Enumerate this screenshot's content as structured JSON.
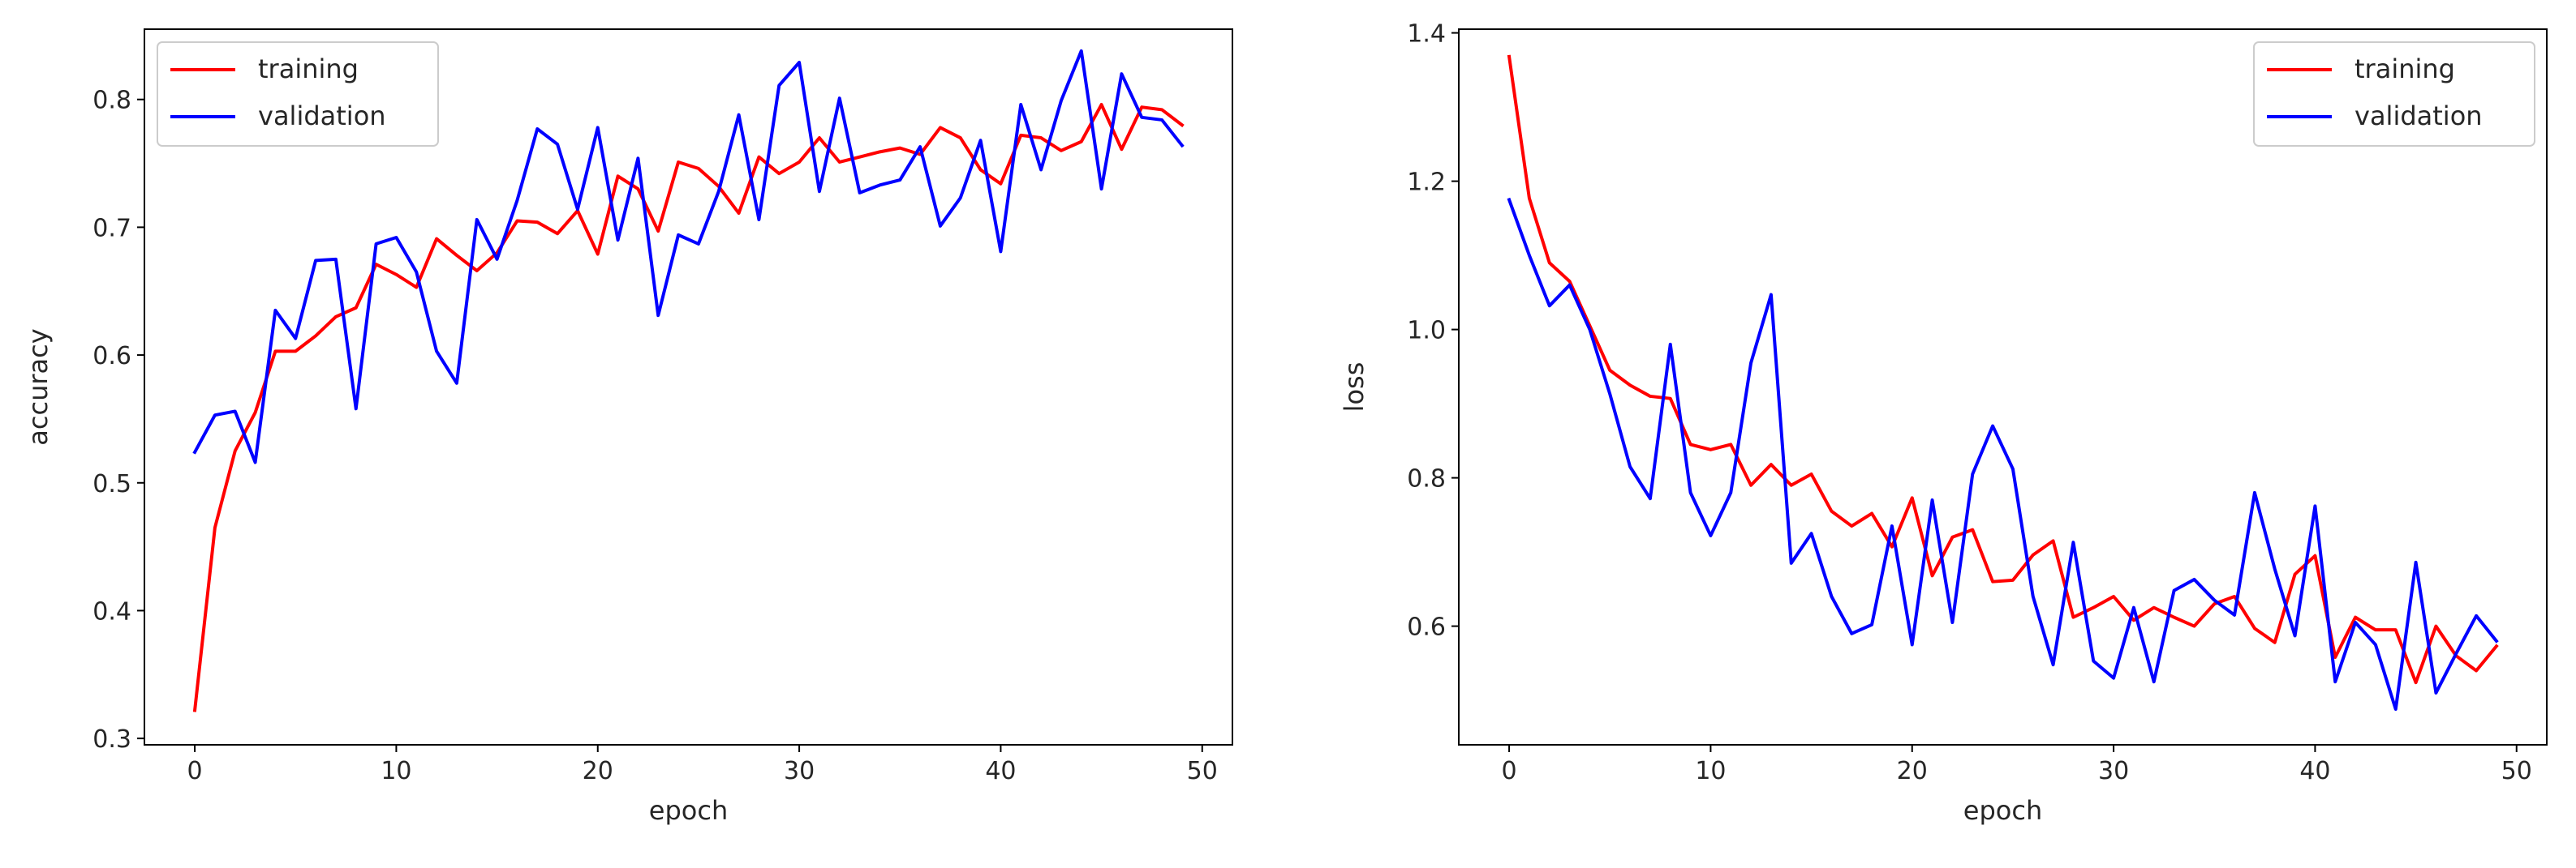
{
  "chart_data": [
    {
      "type": "line",
      "title": "",
      "xlabel": "epoch",
      "ylabel": "accuracy",
      "xlim": [
        -2.5,
        51.5
      ],
      "ylim": [
        0.295,
        0.855
      ],
      "xticks": [
        0,
        10,
        20,
        30,
        40,
        50
      ],
      "xtick_labels": [
        "0",
        "10",
        "20",
        "30",
        "40",
        "50"
      ],
      "yticks": [
        0.3,
        0.4,
        0.5,
        0.6,
        0.7,
        0.8
      ],
      "ytick_labels": [
        "0.3",
        "0.4",
        "0.5",
        "0.6",
        "0.7",
        "0.8"
      ],
      "legend_position": "top-left",
      "grid": false,
      "x": [
        0,
        1,
        2,
        3,
        4,
        5,
        6,
        7,
        8,
        9,
        10,
        11,
        12,
        13,
        14,
        15,
        16,
        17,
        18,
        19,
        20,
        21,
        22,
        23,
        24,
        25,
        26,
        27,
        28,
        29,
        30,
        31,
        32,
        33,
        34,
        35,
        36,
        37,
        38,
        39,
        40,
        41,
        42,
        43,
        44,
        45,
        46,
        47,
        48,
        49
      ],
      "series": [
        {
          "name": "training",
          "color": "#ff0000",
          "values": [
            0.322,
            0.465,
            0.525,
            0.555,
            0.603,
            0.603,
            0.615,
            0.63,
            0.637,
            0.671,
            0.663,
            0.653,
            0.691,
            0.678,
            0.666,
            0.68,
            0.705,
            0.704,
            0.695,
            0.713,
            0.679,
            0.74,
            0.73,
            0.697,
            0.751,
            0.746,
            0.732,
            0.711,
            0.755,
            0.742,
            0.751,
            0.77,
            0.751,
            0.755,
            0.759,
            0.762,
            0.757,
            0.778,
            0.77,
            0.745,
            0.734,
            0.772,
            0.77,
            0.76,
            0.767,
            0.796,
            0.761,
            0.794,
            0.792,
            0.78
          ]
        },
        {
          "name": "validation",
          "color": "#0000ff",
          "values": [
            0.524,
            0.553,
            0.556,
            0.516,
            0.635,
            0.613,
            0.674,
            0.675,
            0.558,
            0.687,
            0.692,
            0.665,
            0.603,
            0.578,
            0.706,
            0.675,
            0.721,
            0.777,
            0.765,
            0.714,
            0.778,
            0.69,
            0.754,
            0.631,
            0.694,
            0.687,
            0.728,
            0.788,
            0.706,
            0.811,
            0.829,
            0.728,
            0.801,
            0.727,
            0.733,
            0.737,
            0.763,
            0.701,
            0.723,
            0.768,
            0.681,
            0.796,
            0.745,
            0.799,
            0.838,
            0.73,
            0.82,
            0.786,
            0.784,
            0.764
          ]
        }
      ]
    },
    {
      "type": "line",
      "title": "",
      "xlabel": "epoch",
      "ylabel": "loss",
      "xlim": [
        -2.5,
        51.5
      ],
      "ylim": [
        0.44,
        1.405
      ],
      "xticks": [
        0,
        10,
        20,
        30,
        40,
        50
      ],
      "xtick_labels": [
        "0",
        "10",
        "20",
        "30",
        "40",
        "50"
      ],
      "yticks": [
        0.6,
        0.8,
        1.0,
        1.2,
        1.4
      ],
      "ytick_labels": [
        "0.6",
        "0.8",
        "1.0",
        "1.2",
        "1.4"
      ],
      "legend_position": "top-right",
      "grid": false,
      "x": [
        0,
        1,
        2,
        3,
        4,
        5,
        6,
        7,
        8,
        9,
        10,
        11,
        12,
        13,
        14,
        15,
        16,
        17,
        18,
        19,
        20,
        21,
        22,
        23,
        24,
        25,
        26,
        27,
        28,
        29,
        30,
        31,
        32,
        33,
        34,
        35,
        36,
        37,
        38,
        39,
        40,
        41,
        42,
        43,
        44,
        45,
        46,
        47,
        48,
        49
      ],
      "series": [
        {
          "name": "training",
          "color": "#ff0000",
          "values": [
            1.368,
            1.177,
            1.09,
            1.065,
            1.005,
            0.945,
            0.925,
            0.91,
            0.907,
            0.845,
            0.838,
            0.845,
            0.79,
            0.818,
            0.79,
            0.805,
            0.755,
            0.735,
            0.752,
            0.707,
            0.773,
            0.668,
            0.72,
            0.73,
            0.66,
            0.662,
            0.696,
            0.715,
            0.612,
            0.625,
            0.64,
            0.608,
            0.625,
            0.612,
            0.6,
            0.63,
            0.64,
            0.597,
            0.578,
            0.67,
            0.695,
            0.558,
            0.612,
            0.595,
            0.595,
            0.524,
            0.6,
            0.56,
            0.54,
            0.573
          ]
        },
        {
          "name": "validation",
          "color": "#0000ff",
          "values": [
            1.175,
            1.1,
            1.032,
            1.06,
            1.0,
            0.913,
            0.815,
            0.772,
            0.98,
            0.78,
            0.722,
            0.78,
            0.955,
            1.047,
            0.685,
            0.725,
            0.64,
            0.59,
            0.602,
            0.735,
            0.575,
            0.77,
            0.605,
            0.805,
            0.87,
            0.812,
            0.64,
            0.548,
            0.713,
            0.553,
            0.53,
            0.625,
            0.525,
            0.648,
            0.663,
            0.635,
            0.615,
            0.78,
            0.677,
            0.587,
            0.762,
            0.525,
            0.605,
            0.575,
            0.488,
            0.686,
            0.51,
            0.563,
            0.614,
            0.58
          ]
        }
      ]
    }
  ]
}
